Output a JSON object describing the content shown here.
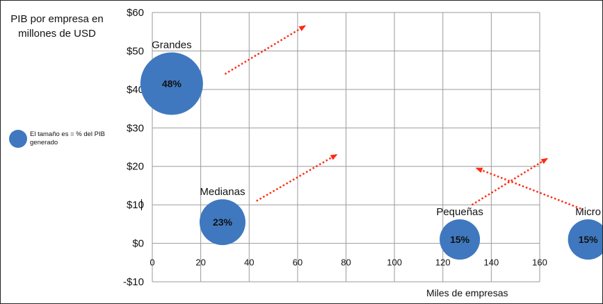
{
  "chart_data": {
    "type": "scatter",
    "subtype": "bubble",
    "ylabel": "PIB por empresa en millones de USD",
    "xlabel": "Miles de empresas",
    "xlim": [
      0,
      160
    ],
    "ylim": [
      -10,
      60
    ],
    "x_ticks": [
      {
        "value": 0,
        "label": "0"
      },
      {
        "value": 20,
        "label": "20"
      },
      {
        "value": 40,
        "label": "40"
      },
      {
        "value": 60,
        "label": "60"
      },
      {
        "value": 80,
        "label": "80"
      },
      {
        "value": 100,
        "label": "100"
      },
      {
        "value": 120,
        "label": "120"
      },
      {
        "value": 140,
        "label": "140"
      },
      {
        "value": 160,
        "label": "160"
      }
    ],
    "y_ticks": [
      {
        "value": 60,
        "label": "$60"
      },
      {
        "value": 50,
        "label": "$50"
      },
      {
        "value": 40,
        "label": "$40"
      },
      {
        "value": 30,
        "label": "$30"
      },
      {
        "value": 20,
        "label": "$20"
      },
      {
        "value": 10,
        "label": "$10"
      },
      {
        "value": 0,
        "label": "$0"
      },
      {
        "value": -10,
        "label": "-$10"
      }
    ],
    "grid": true,
    "legend": {
      "label": "El tamaño es = % del PIB generado",
      "placement": "left"
    },
    "bubbles": [
      {
        "name": "Grandes",
        "x": 8,
        "y": 41.5,
        "share": 48,
        "label": "48%"
      },
      {
        "name": "Medianas",
        "x": 29,
        "y": 5.5,
        "share": 23,
        "label": "23%"
      },
      {
        "name": "Pequeñas",
        "x": 127,
        "y": 1,
        "share": 15,
        "label": "15%"
      },
      {
        "name": "Micro",
        "x": 180,
        "y": 1,
        "share": 15,
        "label": "15%"
      }
    ],
    "arrows": [
      {
        "from": [
          30,
          44
        ],
        "to": [
          63,
          56.5
        ]
      },
      {
        "from": [
          43,
          11
        ],
        "to": [
          76,
          23
        ]
      },
      {
        "from": [
          132,
          10
        ],
        "to": [
          163,
          22
        ]
      },
      {
        "from": [
          177,
          9
        ],
        "to": [
          134,
          19.5
        ]
      }
    ],
    "colors": {
      "bubble": "#3f78bf",
      "arrow": "#ff2a12",
      "grid": "#9a9a9a"
    }
  }
}
